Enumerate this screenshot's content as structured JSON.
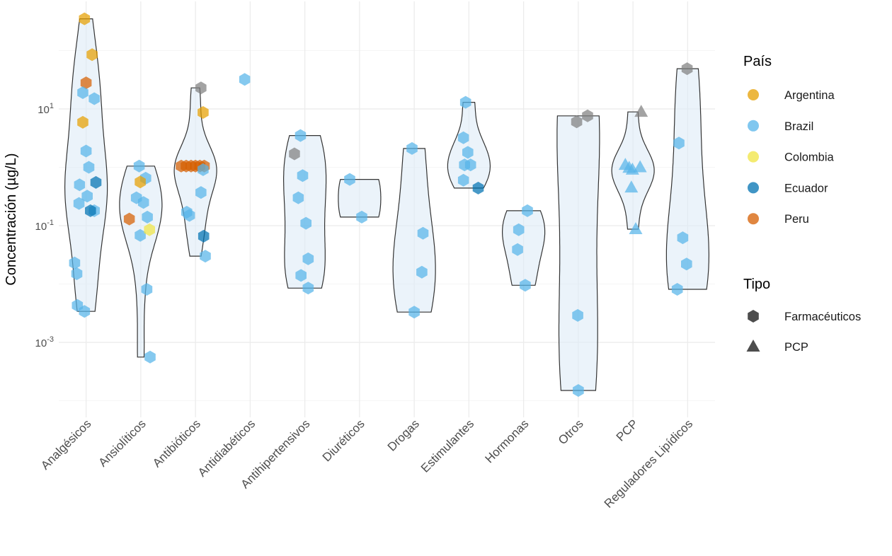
{
  "chart_data": {
    "type": "violin-jitter",
    "title": "",
    "xlabel": "",
    "ylabel": "Concentración (µg/L)",
    "yscale": "log10",
    "ylim": [
      0.0001,
      400
    ],
    "y_ticks": [
      {
        "value": 10,
        "label_base": "10",
        "label_exp": "1"
      },
      {
        "value": 0.1,
        "label_base": "10",
        "label_exp": "-1"
      },
      {
        "value": 0.001,
        "label_base": "10",
        "label_exp": "-3"
      }
    ],
    "grid": true,
    "categories": [
      "Analgésicos",
      "Ansiolíticos",
      "Antibióticos",
      "Antidiabéticos",
      "Antihipertensivos",
      "Diuréticos",
      "Drogas",
      "Estimulantes",
      "Hormonas",
      "Otros",
      "PCP",
      "Reguladores Lipídicos"
    ],
    "colors": {
      "Argentina": "#E69F00",
      "Brazil": "#56B4E9",
      "Colombia": "#F0E442",
      "Ecuador": "#0072B2",
      "Peru": "#D55E00",
      "NA": "#7f7f7f"
    },
    "legend": {
      "placement": "right",
      "pais_title": "País",
      "pais_items": [
        "Argentina",
        "Brazil",
        "Colombia",
        "Ecuador",
        "Peru"
      ],
      "tipo_title": "Tipo",
      "tipo_items": [
        {
          "label": "Farmacéuticos",
          "shape": "hexagon"
        },
        {
          "label": "PCP",
          "shape": "triangle"
        }
      ]
    },
    "points": [
      {
        "cat": "Analgésicos",
        "pais": "Argentina",
        "tipo": "Farmacéuticos",
        "value": 350,
        "jitter": -0.03
      },
      {
        "cat": "Analgésicos",
        "pais": "Argentina",
        "tipo": "Farmacéuticos",
        "value": 85,
        "jitter": 0.11
      },
      {
        "cat": "Analgésicos",
        "pais": "Argentina",
        "tipo": "Farmacéuticos",
        "value": 5.9,
        "jitter": -0.06
      },
      {
        "cat": "Analgésicos",
        "pais": "Peru",
        "tipo": "Farmacéuticos",
        "value": 28,
        "jitter": 0.0
      },
      {
        "cat": "Analgésicos",
        "pais": "Brazil",
        "tipo": "Farmacéuticos",
        "value": 19,
        "jitter": -0.06
      },
      {
        "cat": "Analgésicos",
        "pais": "Brazil",
        "tipo": "Farmacéuticos",
        "value": 15,
        "jitter": 0.15
      },
      {
        "cat": "Analgésicos",
        "pais": "Brazil",
        "tipo": "Farmacéuticos",
        "value": 1.9,
        "jitter": 0.0
      },
      {
        "cat": "Analgésicos",
        "pais": "Brazil",
        "tipo": "Farmacéuticos",
        "value": 1.0,
        "jitter": 0.05
      },
      {
        "cat": "Analgésicos",
        "pais": "Brazil",
        "tipo": "Farmacéuticos",
        "value": 0.5,
        "jitter": -0.12
      },
      {
        "cat": "Analgésicos",
        "pais": "Brazil",
        "tipo": "Farmacéuticos",
        "value": 0.32,
        "jitter": 0.02
      },
      {
        "cat": "Analgésicos",
        "pais": "Brazil",
        "tipo": "Farmacéuticos",
        "value": 0.24,
        "jitter": -0.13
      },
      {
        "cat": "Analgésicos",
        "pais": "Brazil",
        "tipo": "Farmacéuticos",
        "value": 0.18,
        "jitter": 0.15
      },
      {
        "cat": "Analgésicos",
        "pais": "Brazil",
        "tipo": "Farmacéuticos",
        "value": 0.023,
        "jitter": -0.21
      },
      {
        "cat": "Analgésicos",
        "pais": "Brazil",
        "tipo": "Farmacéuticos",
        "value": 0.015,
        "jitter": -0.17
      },
      {
        "cat": "Analgésicos",
        "pais": "Brazil",
        "tipo": "Farmacéuticos",
        "value": 0.0043,
        "jitter": -0.16
      },
      {
        "cat": "Analgésicos",
        "pais": "Brazil",
        "tipo": "Farmacéuticos",
        "value": 0.0034,
        "jitter": -0.03
      },
      {
        "cat": "Analgésicos",
        "pais": "Ecuador",
        "tipo": "Farmacéuticos",
        "value": 0.55,
        "jitter": 0.18
      },
      {
        "cat": "Analgésicos",
        "pais": "Ecuador",
        "tipo": "Farmacéuticos",
        "value": 0.18,
        "jitter": 0.08
      },
      {
        "cat": "Ansiolíticos",
        "pais": "Brazil",
        "tipo": "Farmacéuticos",
        "value": 1.05,
        "jitter": -0.03
      },
      {
        "cat": "Ansiolíticos",
        "pais": "Brazil",
        "tipo": "Farmacéuticos",
        "value": 0.65,
        "jitter": 0.09
      },
      {
        "cat": "Ansiolíticos",
        "pais": "Brazil",
        "tipo": "Farmacéuticos",
        "value": 0.3,
        "jitter": -0.08
      },
      {
        "cat": "Ansiolíticos",
        "pais": "Brazil",
        "tipo": "Farmacéuticos",
        "value": 0.25,
        "jitter": 0.05
      },
      {
        "cat": "Ansiolíticos",
        "pais": "Brazil",
        "tipo": "Farmacéuticos",
        "value": 0.14,
        "jitter": 0.12
      },
      {
        "cat": "Ansiolíticos",
        "pais": "Brazil",
        "tipo": "Farmacéuticos",
        "value": 0.068,
        "jitter": -0.01
      },
      {
        "cat": "Ansiolíticos",
        "pais": "Brazil",
        "tipo": "Farmacéuticos",
        "value": 0.0081,
        "jitter": 0.11
      },
      {
        "cat": "Ansiolíticos",
        "pais": "Brazil",
        "tipo": "Farmacéuticos",
        "value": 0.00056,
        "jitter": 0.17
      },
      {
        "cat": "Ansiolíticos",
        "pais": "Argentina",
        "tipo": "Farmacéuticos",
        "value": 0.56,
        "jitter": -0.01
      },
      {
        "cat": "Ansiolíticos",
        "pais": "Peru",
        "tipo": "Farmacéuticos",
        "value": 0.13,
        "jitter": -0.21
      },
      {
        "cat": "Ansiolíticos",
        "pais": "Colombia",
        "tipo": "Farmacéuticos",
        "value": 0.085,
        "jitter": 0.16
      },
      {
        "cat": "Antibióticos",
        "pais": "NA",
        "tipo": "Farmacéuticos",
        "value": 23,
        "jitter": 0.1
      },
      {
        "cat": "Antibióticos",
        "pais": "Argentina",
        "tipo": "Farmacéuticos",
        "value": 8.7,
        "jitter": 0.14
      },
      {
        "cat": "Antibióticos",
        "pais": "Peru",
        "tipo": "Farmacéuticos",
        "value": 1.05,
        "jitter": -0.26
      },
      {
        "cat": "Antibióticos",
        "pais": "Peru",
        "tipo": "Farmacéuticos",
        "value": 1.05,
        "jitter": -0.17
      },
      {
        "cat": "Antibióticos",
        "pais": "Peru",
        "tipo": "Farmacéuticos",
        "value": 1.05,
        "jitter": -0.08
      },
      {
        "cat": "Antibióticos",
        "pais": "Peru",
        "tipo": "Farmacéuticos",
        "value": 1.05,
        "jitter": 0.0
      },
      {
        "cat": "Antibióticos",
        "pais": "Peru",
        "tipo": "Farmacéuticos",
        "value": 1.05,
        "jitter": 0.08
      },
      {
        "cat": "Antibióticos",
        "pais": "Peru",
        "tipo": "Farmacéuticos",
        "value": 1.05,
        "jitter": 0.16
      },
      {
        "cat": "Antibióticos",
        "pais": "Brazil",
        "tipo": "Farmacéuticos",
        "value": 0.91,
        "jitter": 0.14
      },
      {
        "cat": "Antibióticos",
        "pais": "Brazil",
        "tipo": "Farmacéuticos",
        "value": 0.37,
        "jitter": 0.1
      },
      {
        "cat": "Antibióticos",
        "pais": "Brazil",
        "tipo": "Farmacéuticos",
        "value": 0.17,
        "jitter": -0.16
      },
      {
        "cat": "Antibióticos",
        "pais": "Brazil",
        "tipo": "Farmacéuticos",
        "value": 0.15,
        "jitter": -0.11
      },
      {
        "cat": "Antibióticos",
        "pais": "Brazil",
        "tipo": "Farmacéuticos",
        "value": 0.03,
        "jitter": 0.18
      },
      {
        "cat": "Antibióticos",
        "pais": "Ecuador",
        "tipo": "Farmacéuticos",
        "value": 0.066,
        "jitter": 0.15
      },
      {
        "cat": "Antidiabéticos",
        "pais": "Brazil",
        "tipo": "Farmacéuticos",
        "value": 32,
        "jitter": -0.1
      },
      {
        "cat": "Antihipertensivos",
        "pais": "Brazil",
        "tipo": "Farmacéuticos",
        "value": 3.5,
        "jitter": -0.08
      },
      {
        "cat": "Antihipertensivos",
        "pais": "Brazil",
        "tipo": "Farmacéuticos",
        "value": 0.72,
        "jitter": -0.04
      },
      {
        "cat": "Antihipertensivos",
        "pais": "Brazil",
        "tipo": "Farmacéuticos",
        "value": 0.3,
        "jitter": -0.12
      },
      {
        "cat": "Antihipertensivos",
        "pais": "Brazil",
        "tipo": "Farmacéuticos",
        "value": 0.11,
        "jitter": 0.02
      },
      {
        "cat": "Antihipertensivos",
        "pais": "Brazil",
        "tipo": "Farmacéuticos",
        "value": 0.027,
        "jitter": 0.06
      },
      {
        "cat": "Antihipertensivos",
        "pais": "Brazil",
        "tipo": "Farmacéuticos",
        "value": 0.014,
        "jitter": -0.07
      },
      {
        "cat": "Antihipertensivos",
        "pais": "Brazil",
        "tipo": "Farmacéuticos",
        "value": 0.0085,
        "jitter": 0.06
      },
      {
        "cat": "Antihipertensivos",
        "pais": "NA",
        "tipo": "Farmacéuticos",
        "value": 1.7,
        "jitter": -0.19
      },
      {
        "cat": "Diuréticos",
        "pais": "Brazil",
        "tipo": "Farmacéuticos",
        "value": 0.62,
        "jitter": -0.18
      },
      {
        "cat": "Diuréticos",
        "pais": "Brazil",
        "tipo": "Farmacéuticos",
        "value": 0.14,
        "jitter": 0.04
      },
      {
        "cat": "Drogas",
        "pais": "Brazil",
        "tipo": "Farmacéuticos",
        "value": 2.1,
        "jitter": -0.04
      },
      {
        "cat": "Drogas",
        "pais": "Brazil",
        "tipo": "Farmacéuticos",
        "value": 0.074,
        "jitter": 0.16
      },
      {
        "cat": "Drogas",
        "pais": "Brazil",
        "tipo": "Farmacéuticos",
        "value": 0.016,
        "jitter": 0.14
      },
      {
        "cat": "Drogas",
        "pais": "Brazil",
        "tipo": "Farmacéuticos",
        "value": 0.0033,
        "jitter": 0.0
      },
      {
        "cat": "Estimulantes",
        "pais": "Brazil",
        "tipo": "Farmacéuticos",
        "value": 13,
        "jitter": -0.06
      },
      {
        "cat": "Estimulantes",
        "pais": "Brazil",
        "tipo": "Farmacéuticos",
        "value": 3.2,
        "jitter": -0.1
      },
      {
        "cat": "Estimulantes",
        "pais": "Brazil",
        "tipo": "Farmacéuticos",
        "value": 1.8,
        "jitter": -0.02
      },
      {
        "cat": "Estimulantes",
        "pais": "Brazil",
        "tipo": "Farmacéuticos",
        "value": 1.1,
        "jitter": -0.08
      },
      {
        "cat": "Estimulantes",
        "pais": "Brazil",
        "tipo": "Farmacéuticos",
        "value": 1.1,
        "jitter": 0.03
      },
      {
        "cat": "Estimulantes",
        "pais": "Brazil",
        "tipo": "Farmacéuticos",
        "value": 0.6,
        "jitter": -0.1
      },
      {
        "cat": "Estimulantes",
        "pais": "Ecuador",
        "tipo": "Farmacéuticos",
        "value": 0.44,
        "jitter": 0.17
      },
      {
        "cat": "Hormonas",
        "pais": "Brazil",
        "tipo": "Farmacéuticos",
        "value": 0.18,
        "jitter": 0.07
      },
      {
        "cat": "Hormonas",
        "pais": "Brazil",
        "tipo": "Farmacéuticos",
        "value": 0.085,
        "jitter": -0.09
      },
      {
        "cat": "Hormonas",
        "pais": "Brazil",
        "tipo": "Farmacéuticos",
        "value": 0.039,
        "jitter": -0.11
      },
      {
        "cat": "Hormonas",
        "pais": "Brazil",
        "tipo": "Farmacéuticos",
        "value": 0.0095,
        "jitter": 0.03
      },
      {
        "cat": "Otros",
        "pais": "NA",
        "tipo": "Farmacéuticos",
        "value": 6.0,
        "jitter": -0.03
      },
      {
        "cat": "Otros",
        "pais": "NA",
        "tipo": "Farmacéuticos",
        "value": 7.6,
        "jitter": 0.17
      },
      {
        "cat": "Otros",
        "pais": "Brazil",
        "tipo": "Farmacéuticos",
        "value": 0.0029,
        "jitter": -0.01
      },
      {
        "cat": "Otros",
        "pais": "Brazil",
        "tipo": "Farmacéuticos",
        "value": 0.00015,
        "jitter": 0.0
      },
      {
        "cat": "PCP",
        "pais": "NA",
        "tipo": "PCP",
        "value": 8.9,
        "jitter": 0.15
      },
      {
        "cat": "PCP",
        "pais": "Brazil",
        "tipo": "PCP",
        "value": 1.1,
        "jitter": -0.14
      },
      {
        "cat": "PCP",
        "pais": "Brazil",
        "tipo": "PCP",
        "value": 0.98,
        "jitter": -0.07
      },
      {
        "cat": "PCP",
        "pais": "Brazil",
        "tipo": "PCP",
        "value": 0.91,
        "jitter": -0.01
      },
      {
        "cat": "PCP",
        "pais": "Brazil",
        "tipo": "PCP",
        "value": 1.0,
        "jitter": 0.13
      },
      {
        "cat": "PCP",
        "pais": "Brazil",
        "tipo": "PCP",
        "value": 0.45,
        "jitter": -0.03
      },
      {
        "cat": "PCP",
        "pais": "Brazil",
        "tipo": "PCP",
        "value": 0.087,
        "jitter": 0.05
      },
      {
        "cat": "Reguladores Lipídicos",
        "pais": "NA",
        "tipo": "Farmacéuticos",
        "value": 49,
        "jitter": -0.01
      },
      {
        "cat": "Reguladores Lipídicos",
        "pais": "Brazil",
        "tipo": "Farmacéuticos",
        "value": 2.6,
        "jitter": -0.16
      },
      {
        "cat": "Reguladores Lipídicos",
        "pais": "Brazil",
        "tipo": "Farmacéuticos",
        "value": 0.062,
        "jitter": -0.09
      },
      {
        "cat": "Reguladores Lipídicos",
        "pais": "Brazil",
        "tipo": "Farmacéuticos",
        "value": 0.022,
        "jitter": -0.02
      },
      {
        "cat": "Reguladores Lipídicos",
        "pais": "Brazil",
        "tipo": "Farmacéuticos",
        "value": 0.0081,
        "jitter": -0.19
      }
    ]
  }
}
